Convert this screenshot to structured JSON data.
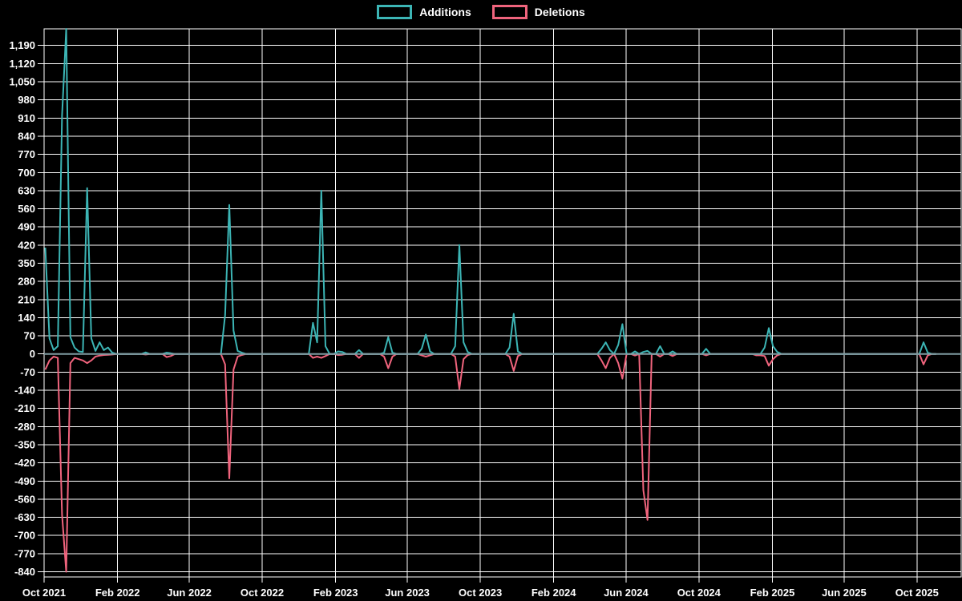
{
  "legend": [
    {
      "label": "Additions",
      "color": "#3cb5b5"
    },
    {
      "label": "Deletions",
      "color": "#f0647d"
    }
  ],
  "colors": {
    "background": "#000000",
    "grid": "#ffffff",
    "axis_text": "#ffffff",
    "additions": "#3cb5b5",
    "deletions": "#f0647d",
    "zero_line": "#7f9ca2"
  },
  "chart_data": {
    "type": "line",
    "title": "",
    "xlabel": "",
    "ylabel": "",
    "grid": true,
    "legend_position": "top-center",
    "y_min": -860,
    "y_max": 1254,
    "y_tick_step": 70,
    "y_ticks": [
      1190,
      1120,
      1050,
      980,
      910,
      840,
      770,
      700,
      630,
      560,
      490,
      420,
      350,
      280,
      210,
      140,
      70,
      0,
      -70,
      -140,
      -210,
      -280,
      -350,
      -420,
      -490,
      -560,
      -630,
      -700,
      -770,
      -840
    ],
    "x_domain": [
      "2021-10-01",
      "2025-12-14"
    ],
    "x_ticks": [
      {
        "label": "Oct 2021",
        "date": "2021-10-01"
      },
      {
        "label": "Feb 2022",
        "date": "2022-02-01"
      },
      {
        "label": "Jun 2022",
        "date": "2022-06-01"
      },
      {
        "label": "Oct 2022",
        "date": "2022-10-01"
      },
      {
        "label": "Feb 2023",
        "date": "2023-02-01"
      },
      {
        "label": "Jun 2023",
        "date": "2023-06-01"
      },
      {
        "label": "Oct 2023",
        "date": "2023-10-01"
      },
      {
        "label": "Feb 2024",
        "date": "2024-02-01"
      },
      {
        "label": "Jun 2024",
        "date": "2024-06-01"
      },
      {
        "label": "Oct 2024",
        "date": "2024-10-01"
      },
      {
        "label": "Feb 2025",
        "date": "2025-02-01"
      },
      {
        "label": "Jun 2025",
        "date": "2025-06-01"
      },
      {
        "label": "Oct 2025",
        "date": "2025-10-01"
      }
    ],
    "series_names": [
      "Additions",
      "Deletions"
    ],
    "series_start": "2021-10-03",
    "series_end": "2025-11-02",
    "points_format": [
      "week_start",
      "additions",
      "deletions"
    ],
    "points_note": "weekly data; weeks not listed are (0,0)",
    "points": [
      [
        "2021-10-03",
        410,
        -60
      ],
      [
        "2021-10-10",
        60,
        -25
      ],
      [
        "2021-10-17",
        15,
        -10
      ],
      [
        "2021-10-24",
        30,
        -15
      ],
      [
        "2021-10-31",
        920,
        -620
      ],
      [
        "2021-11-07",
        1254,
        -840
      ],
      [
        "2021-11-14",
        65,
        -35
      ],
      [
        "2021-11-21",
        25,
        -15
      ],
      [
        "2021-11-28",
        10,
        -20
      ],
      [
        "2021-12-05",
        8,
        -25
      ],
      [
        "2021-12-12",
        640,
        -35
      ],
      [
        "2021-12-19",
        60,
        -25
      ],
      [
        "2021-12-26",
        12,
        -10
      ],
      [
        "2022-01-02",
        45,
        -6
      ],
      [
        "2022-01-09",
        15,
        -4
      ],
      [
        "2022-01-16",
        25,
        -3
      ],
      [
        "2022-01-23",
        5,
        -2
      ],
      [
        "2022-03-20",
        6,
        -2
      ],
      [
        "2022-04-24",
        5,
        -12
      ],
      [
        "2022-05-01",
        3,
        -8
      ],
      [
        "2022-07-31",
        150,
        -40
      ],
      [
        "2022-08-07",
        575,
        -480
      ],
      [
        "2022-08-14",
        90,
        -60
      ],
      [
        "2022-08-21",
        12,
        -10
      ],
      [
        "2022-08-28",
        5,
        -4
      ],
      [
        "2022-12-25",
        120,
        -15
      ],
      [
        "2023-01-01",
        45,
        -10
      ],
      [
        "2023-01-08",
        630,
        -15
      ],
      [
        "2023-01-15",
        30,
        -8
      ],
      [
        "2023-02-05",
        10,
        -4
      ],
      [
        "2023-02-12",
        8,
        -3
      ],
      [
        "2023-03-12",
        15,
        -15
      ],
      [
        "2023-04-23",
        5,
        -10
      ],
      [
        "2023-04-30",
        65,
        -55
      ],
      [
        "2023-05-07",
        5,
        -10
      ],
      [
        "2023-06-25",
        20,
        -5
      ],
      [
        "2023-07-02",
        75,
        -10
      ],
      [
        "2023-07-09",
        10,
        -5
      ],
      [
        "2023-08-20",
        30,
        -10
      ],
      [
        "2023-08-27",
        420,
        -135
      ],
      [
        "2023-09-03",
        45,
        -20
      ],
      [
        "2023-09-10",
        8,
        -4
      ],
      [
        "2023-11-19",
        25,
        -10
      ],
      [
        "2023-11-26",
        155,
        -65
      ],
      [
        "2023-12-03",
        10,
        -8
      ],
      [
        "2024-04-21",
        20,
        -25
      ],
      [
        "2024-04-28",
        45,
        -55
      ],
      [
        "2024-05-05",
        15,
        -15
      ],
      [
        "2024-05-19",
        35,
        -35
      ],
      [
        "2024-05-26",
        115,
        -95
      ],
      [
        "2024-06-16",
        10,
        -6
      ],
      [
        "2024-06-30",
        8,
        -525
      ],
      [
        "2024-07-07",
        12,
        -640
      ],
      [
        "2024-07-28",
        30,
        -10
      ],
      [
        "2024-08-18",
        10,
        -8
      ],
      [
        "2024-10-13",
        20,
        -5
      ],
      [
        "2025-01-05",
        0,
        -5
      ],
      [
        "2025-01-12",
        0,
        -5
      ],
      [
        "2025-01-19",
        25,
        -8
      ],
      [
        "2025-01-26",
        100,
        -45
      ],
      [
        "2025-02-02",
        30,
        -20
      ],
      [
        "2025-02-09",
        8,
        -5
      ],
      [
        "2025-10-12",
        45,
        -40
      ],
      [
        "2025-10-19",
        5,
        -5
      ]
    ]
  }
}
